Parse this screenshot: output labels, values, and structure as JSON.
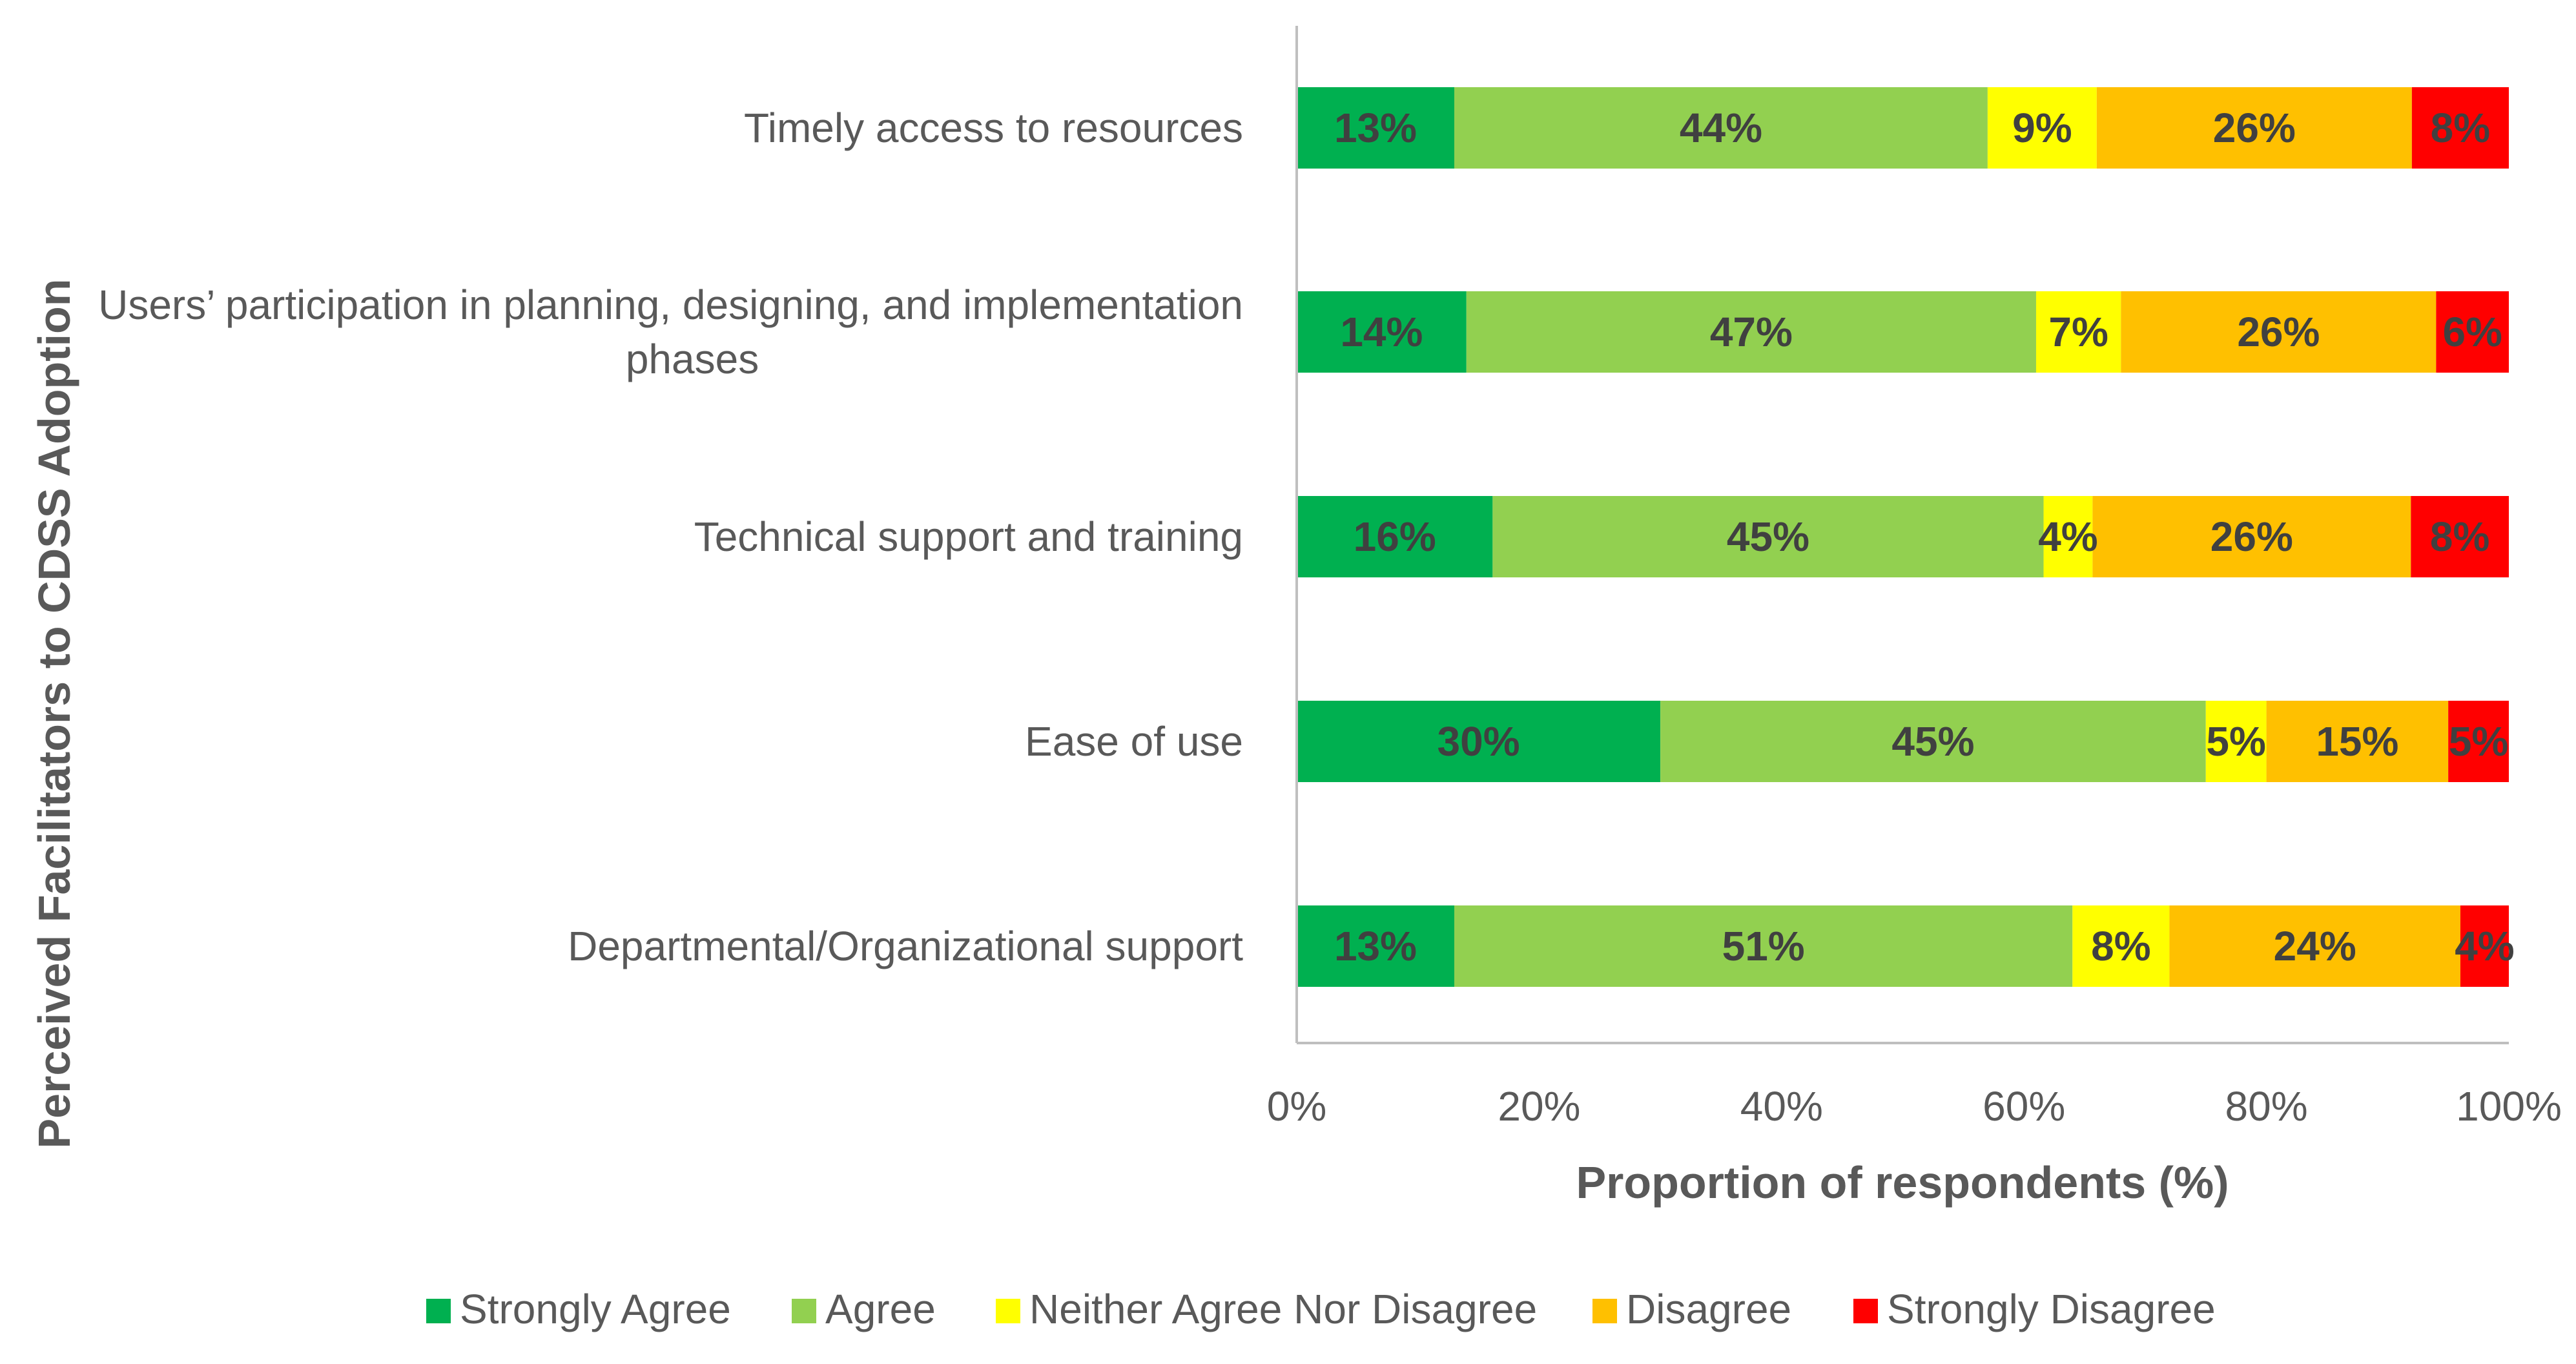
{
  "chart_data": {
    "type": "bar",
    "orientation": "horizontal",
    "stacked": true,
    "categories": [
      "Timely access to resources",
      "Users’ participation in planning, designing, and implementation phases",
      "Technical support and training",
      "Ease of use",
      "Departmental/Organizational support"
    ],
    "category_lines": [
      [
        "Timely access to resources"
      ],
      [
        "Users’ participation in planning, designing, and implementation",
        "phases"
      ],
      [
        "Technical support and training"
      ],
      [
        "Ease of use"
      ],
      [
        "Departmental/Organizational support"
      ]
    ],
    "series": [
      {
        "name": "Strongly Agree",
        "color": "#00B050",
        "values": [
          13,
          14,
          16,
          30,
          13
        ],
        "labels": [
          "13%",
          "14%",
          "16%",
          "30%",
          "13%"
        ]
      },
      {
        "name": "Agree",
        "color": "#92D050",
        "values": [
          44,
          47,
          45,
          45,
          51
        ],
        "labels": [
          "44%",
          "47%",
          "45%",
          "45%",
          "51%"
        ]
      },
      {
        "name": "Neither Agree Nor Disagree",
        "color": "#FFFF00",
        "values": [
          9,
          7,
          4,
          5,
          8
        ],
        "labels": [
          "9%",
          "7%",
          "4%",
          "5%",
          "8%"
        ]
      },
      {
        "name": "Disagree",
        "color": "#FFC000",
        "values": [
          26,
          26,
          26,
          15,
          24
        ],
        "labels": [
          "26%",
          "26%",
          "26%",
          "15%",
          "24%"
        ]
      },
      {
        "name": "Strongly Disagree",
        "color": "#FF0000",
        "values": [
          8,
          6,
          8,
          5,
          4
        ],
        "labels": [
          "8%",
          "6%",
          "8%",
          "5%",
          "4%"
        ]
      }
    ],
    "xlabel": "Proportion of respondents (%)",
    "ylabel": "Perceived Facilitators to CDSS Adoption",
    "xlim": [
      0,
      100
    ],
    "xticks": [
      "0%",
      "20%",
      "40%",
      "60%",
      "80%",
      "100%"
    ],
    "legend_position": "bottom",
    "grid": false
  }
}
